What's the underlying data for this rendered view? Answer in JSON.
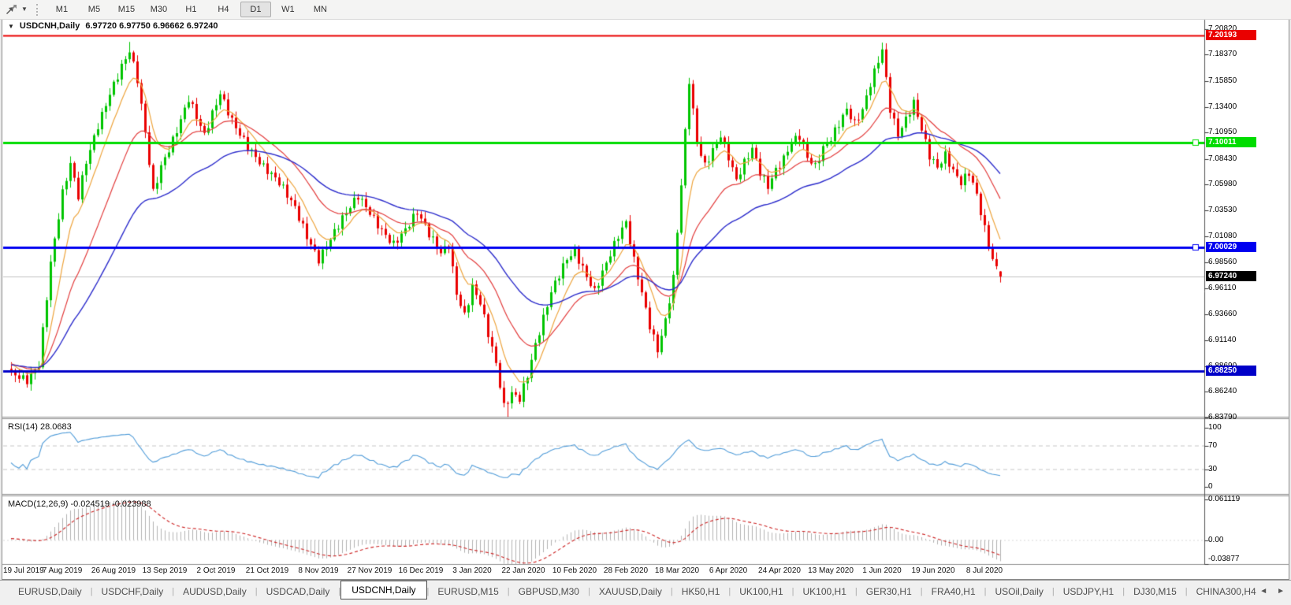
{
  "toolbar": {
    "timeframes": [
      "M1",
      "M5",
      "M15",
      "M30",
      "H1",
      "H4",
      "D1",
      "W1",
      "MN"
    ],
    "active_timeframe": "D1",
    "caret_glyph": "▼"
  },
  "chart": {
    "title": "USDCNH,Daily",
    "quote": "6.97720 6.97750 6.96662 6.97240",
    "collapse_glyph": "▼"
  },
  "rsi_panel": {
    "title": "RSI(14) 28.0683",
    "period": 14,
    "current": 28.0683,
    "ticks": [
      {
        "label": "100",
        "value": 100
      },
      {
        "label": "70",
        "value": 70
      },
      {
        "label": "30",
        "value": 30
      },
      {
        "label": "0",
        "value": 0
      }
    ],
    "line_color": "#4f9bd8",
    "guide_color": "#c4c4c4"
  },
  "macd_panel": {
    "title": "MACD(12,26,9) -0.024519 -0.023988",
    "current_macd": -0.024519,
    "current_signal": -0.023988,
    "ticks": [
      {
        "label": "0.061119",
        "value": 0.061119
      },
      {
        "label": "0.00",
        "value": 0
      },
      {
        "label": "-0.03877",
        "value": -0.03877
      }
    ],
    "hist_color": "#b2b2b2",
    "signal_color": "#cc2222"
  },
  "tabs": {
    "items": [
      "EURUSD,Daily",
      "USDCHF,Daily",
      "AUDUSD,Daily",
      "USDCAD,Daily",
      "USDCNH,Daily",
      "EURUSD,M15",
      "GBPUSD,M30",
      "XAUUSD,Daily",
      "HK50,H1",
      "UK100,H1",
      "UK100,H1",
      "GER30,H1",
      "FRA40,H1",
      "USOil,Daily",
      "USDJPY,H1",
      "DJ30,M15",
      "CHINA300,H4"
    ],
    "active": "USDCNH,Daily",
    "separator_glyph": "|",
    "scroll_left_icon": "◄",
    "scroll_right_icon": "►"
  },
  "chart_data": {
    "type": "candlestick",
    "symbol": "USDCNH",
    "period": "Daily",
    "current_bar": {
      "open": 6.9772,
      "high": 6.9775,
      "low": 6.96662,
      "close": 6.9724
    },
    "ylim": [
      6.8395,
      7.217
    ],
    "y_ticks": [
      {
        "label": "7.20820",
        "value": 7.2082
      },
      {
        "label": "7.18370",
        "value": 7.1837
      },
      {
        "label": "7.15850",
        "value": 7.1585
      },
      {
        "label": "7.13400",
        "value": 7.134
      },
      {
        "label": "7.10950",
        "value": 7.1095
      },
      {
        "label": "7.08430",
        "value": 7.0843
      },
      {
        "label": "7.05980",
        "value": 7.0598
      },
      {
        "label": "7.03530",
        "value": 7.0353
      },
      {
        "label": "7.01080",
        "value": 7.0108
      },
      {
        "label": "6.98560",
        "value": 6.9856
      },
      {
        "label": "6.96110",
        "value": 6.9611
      },
      {
        "label": "6.93660",
        "value": 6.9366
      },
      {
        "label": "6.91140",
        "value": 6.9114
      },
      {
        "label": "6.88690",
        "value": 6.8869
      },
      {
        "label": "6.86240",
        "value": 6.8624
      },
      {
        "label": "6.83790",
        "value": 6.8379
      }
    ],
    "x_labels": [
      "19 Jul 2019",
      "7 Aug 2019",
      "26 Aug 2019",
      "13 Sep 2019",
      "2 Oct 2019",
      "21 Oct 2019",
      "8 Nov 2019",
      "27 Nov 2019",
      "16 Dec 2019",
      "3 Jan 2020",
      "22 Jan 2020",
      "10 Feb 2020",
      "28 Feb 2020",
      "18 Mar 2020",
      "6 Apr 2020",
      "24 Apr 2020",
      "13 May 2020",
      "1 Jun 2020",
      "19 Jun 2020",
      "8 Jul 2020"
    ],
    "n_candles": 252,
    "close_anchors": [
      [
        0,
        6.88
      ],
      [
        4,
        6.875
      ],
      [
        7,
        6.89
      ],
      [
        10,
        6.985
      ],
      [
        13,
        7.05
      ],
      [
        15,
        7.078
      ],
      [
        17,
        7.048
      ],
      [
        19,
        7.082
      ],
      [
        22,
        7.118
      ],
      [
        25,
        7.148
      ],
      [
        28,
        7.172
      ],
      [
        30,
        7.186
      ],
      [
        32,
        7.158
      ],
      [
        34,
        7.108
      ],
      [
        36,
        7.052
      ],
      [
        38,
        7.078
      ],
      [
        41,
        7.104
      ],
      [
        45,
        7.142
      ],
      [
        49,
        7.105
      ],
      [
        53,
        7.146
      ],
      [
        56,
        7.122
      ],
      [
        60,
        7.098
      ],
      [
        64,
        7.076
      ],
      [
        68,
        7.06
      ],
      [
        72,
        7.038
      ],
      [
        75,
        7.012
      ],
      [
        78,
        6.99
      ],
      [
        81,
        7.008
      ],
      [
        84,
        7.026
      ],
      [
        88,
        7.048
      ],
      [
        91,
        7.034
      ],
      [
        94,
        7.018
      ],
      [
        97,
        7.004
      ],
      [
        100,
        7.016
      ],
      [
        103,
        7.032
      ],
      [
        106,
        7.012
      ],
      [
        109,
        6.996
      ],
      [
        111,
        7.004
      ],
      [
        113,
        6.958
      ],
      [
        115,
        6.936
      ],
      [
        117,
        6.962
      ],
      [
        119,
        6.946
      ],
      [
        121,
        6.916
      ],
      [
        123,
        6.888
      ],
      [
        125,
        6.848
      ],
      [
        127,
        6.862
      ],
      [
        129,
        6.858
      ],
      [
        131,
        6.88
      ],
      [
        133,
        6.908
      ],
      [
        135,
        6.932
      ],
      [
        137,
        6.956
      ],
      [
        139,
        6.972
      ],
      [
        141,
        6.988
      ],
      [
        143,
        6.996
      ],
      [
        146,
        6.974
      ],
      [
        148,
        6.96
      ],
      [
        151,
        6.986
      ],
      [
        154,
        7.01
      ],
      [
        156,
        7.022
      ],
      [
        158,
        6.986
      ],
      [
        160,
        6.956
      ],
      [
        162,
        6.926
      ],
      [
        164,
        6.904
      ],
      [
        166,
        6.932
      ],
      [
        168,
        6.972
      ],
      [
        170,
        7.06
      ],
      [
        172,
        7.158
      ],
      [
        174,
        7.098
      ],
      [
        176,
        7.076
      ],
      [
        178,
        7.092
      ],
      [
        180,
        7.108
      ],
      [
        182,
        7.088
      ],
      [
        184,
        7.066
      ],
      [
        186,
        7.082
      ],
      [
        188,
        7.094
      ],
      [
        190,
        7.07
      ],
      [
        192,
        7.056
      ],
      [
        194,
        7.072
      ],
      [
        196,
        7.084
      ],
      [
        198,
        7.102
      ],
      [
        200,
        7.108
      ],
      [
        202,
        7.088
      ],
      [
        204,
        7.078
      ],
      [
        206,
        7.094
      ],
      [
        208,
        7.102
      ],
      [
        210,
        7.116
      ],
      [
        212,
        7.13
      ],
      [
        214,
        7.118
      ],
      [
        216,
        7.132
      ],
      [
        218,
        7.158
      ],
      [
        220,
        7.18
      ],
      [
        221,
        7.19
      ],
      [
        223,
        7.132
      ],
      [
        225,
        7.106
      ],
      [
        227,
        7.12
      ],
      [
        229,
        7.136
      ],
      [
        231,
        7.112
      ],
      [
        233,
        7.088
      ],
      [
        235,
        7.078
      ],
      [
        237,
        7.09
      ],
      [
        239,
        7.074
      ],
      [
        241,
        7.062
      ],
      [
        243,
        7.07
      ],
      [
        245,
        7.048
      ],
      [
        247,
        7.016
      ],
      [
        249,
        6.988
      ],
      [
        251,
        6.9724
      ]
    ],
    "bull_color": "#00c400",
    "bear_color": "#ea0000",
    "moving_averages": [
      {
        "type": "ema",
        "period": 8,
        "color": "#eda33b",
        "width": 1.2
      },
      {
        "type": "ema",
        "period": 21,
        "color": "#e23b3b",
        "width": 1.2
      },
      {
        "type": "ema",
        "period": 45,
        "color": "#2b2bcb",
        "width": 1.4
      }
    ],
    "levels": [
      {
        "value": 7.20193,
        "label": "7.20193",
        "color": "#ea0000",
        "width": 2,
        "handle": false
      },
      {
        "value": 7.10011,
        "label": "7.10011",
        "color": "#00dc00",
        "width": 3,
        "handle": true
      },
      {
        "value": 7.00029,
        "label": "7.00029",
        "color": "#0000f0",
        "width": 3,
        "handle": true
      },
      {
        "value": 6.8825,
        "label": "6.88250",
        "color": "#0000c8",
        "width": 3,
        "handle": false
      }
    ],
    "current_price": {
      "value": 6.9724,
      "label": "6.97240",
      "bg": "#000000"
    },
    "bid_line_color": "#c0c0c0",
    "indicators": {
      "rsi": {
        "period": 14,
        "current": 28.0683
      },
      "macd": {
        "fast": 12,
        "slow": 26,
        "signal": 9,
        "current_macd": -0.024519,
        "current_signal": -0.023988
      }
    }
  }
}
